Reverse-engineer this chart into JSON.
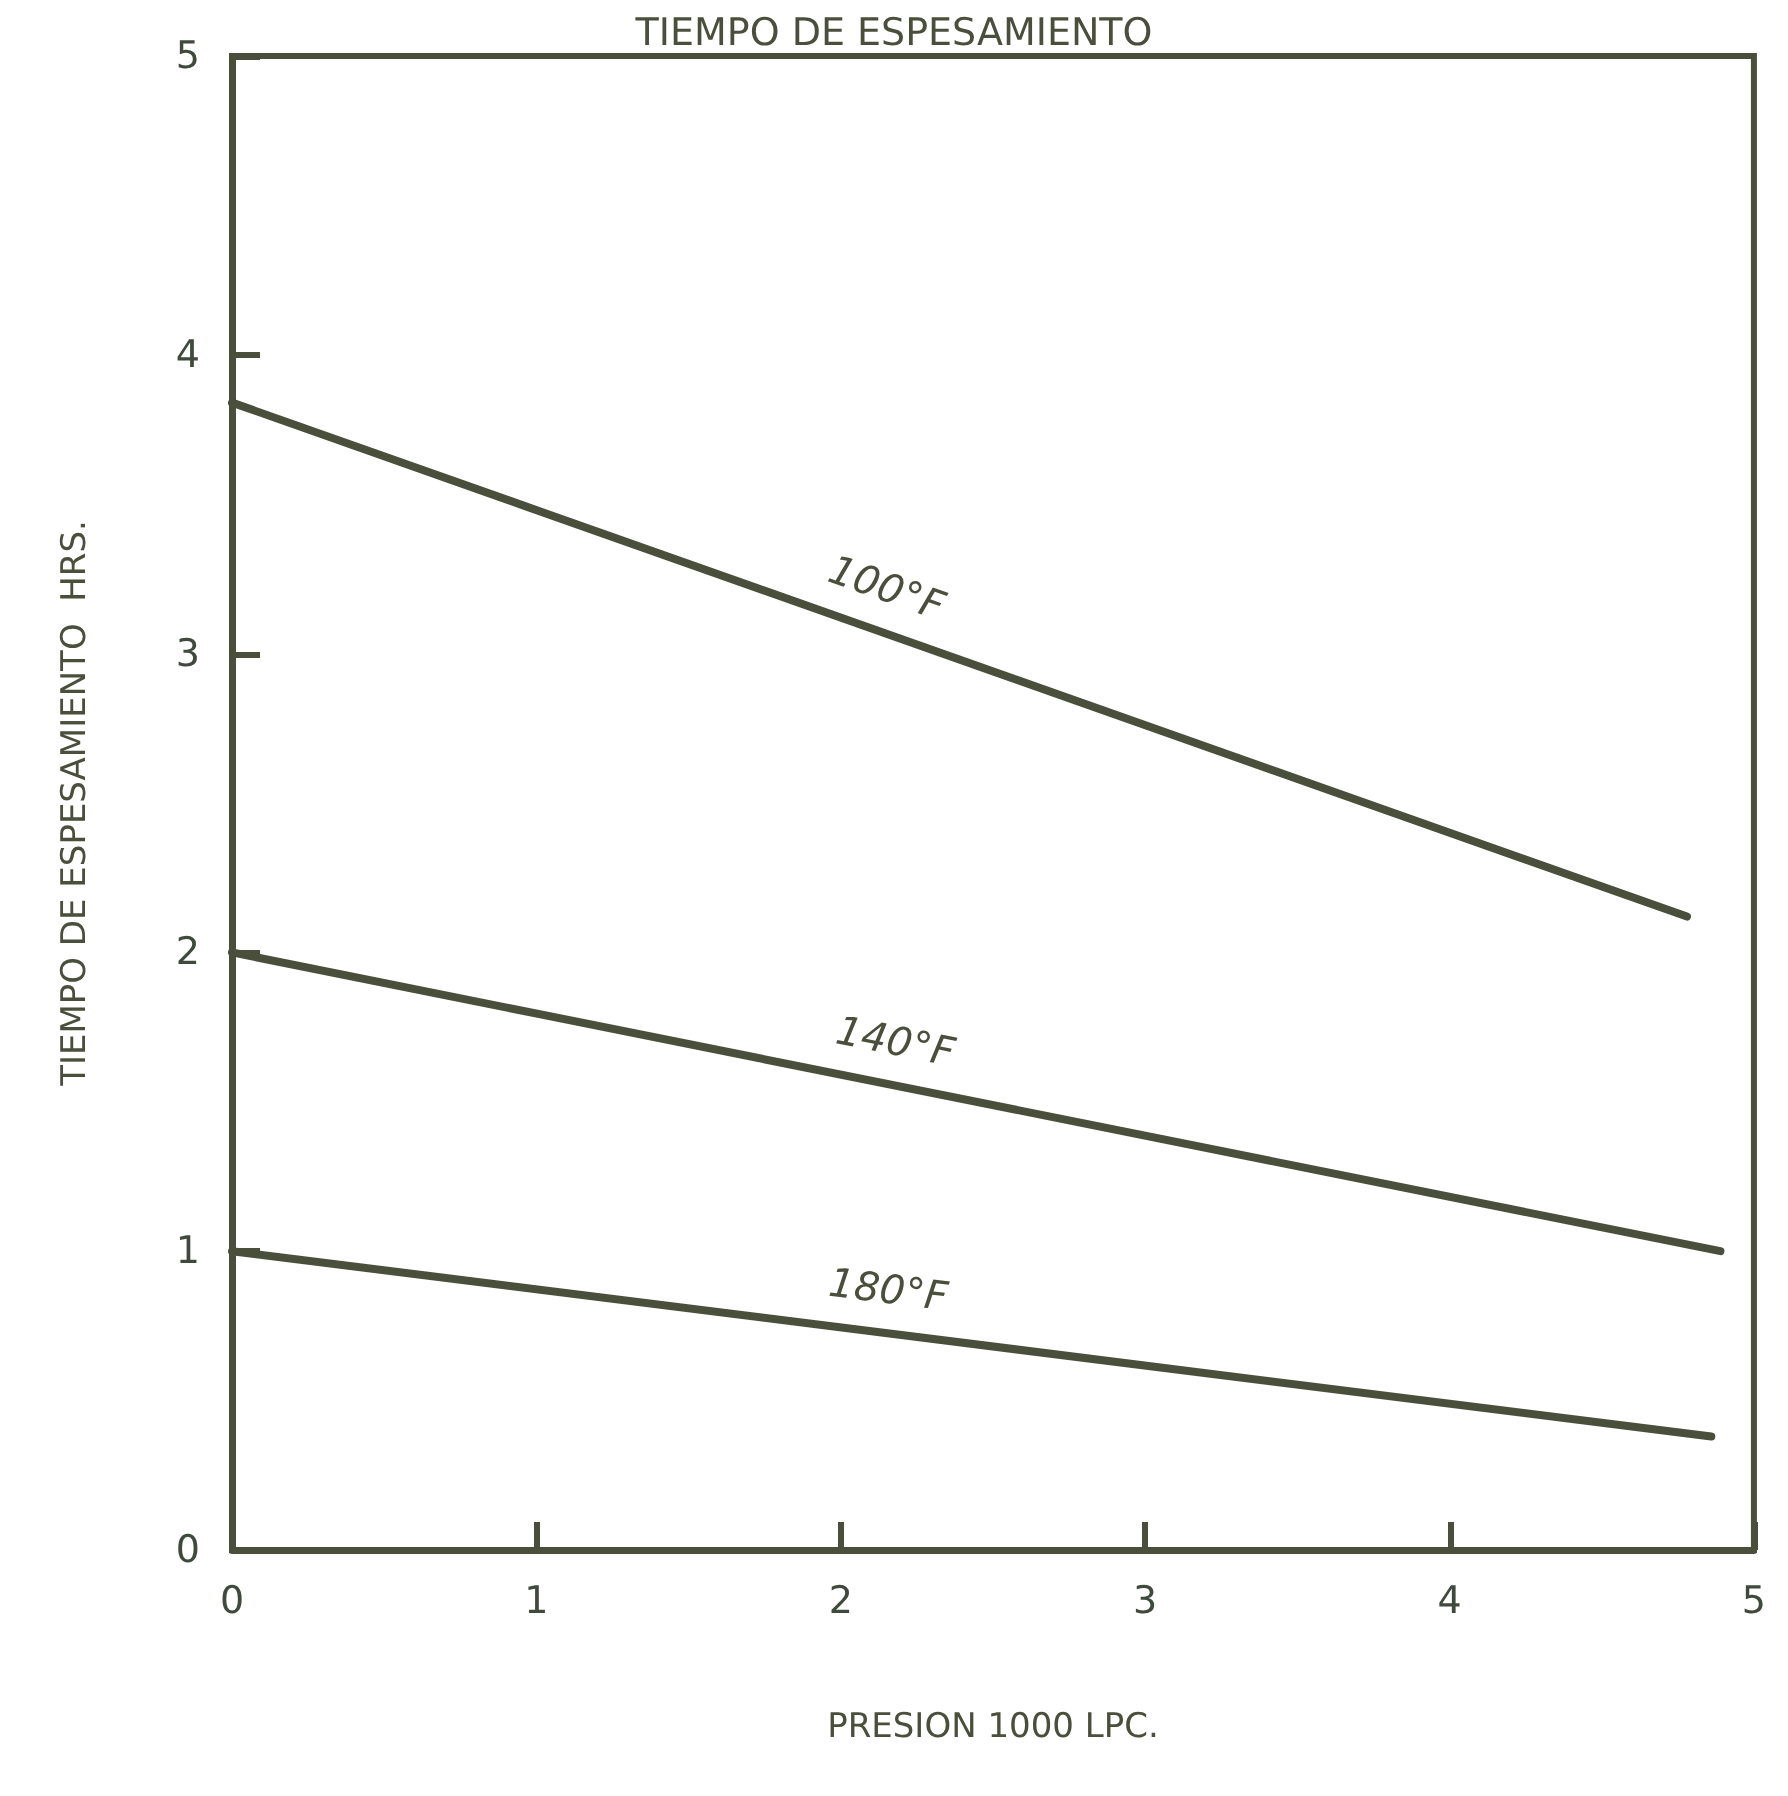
{
  "chart_data": {
    "type": "line",
    "title": "TIEMPO DE ESPESAMIENTO",
    "xlabel": "PRESION 1000 LPC.",
    "ylabel": "TIEMPO DE ESPESAMIENTO  HRS.",
    "xlim": [
      0,
      5
    ],
    "ylim": [
      0,
      5
    ],
    "xticks": [
      0,
      1,
      2,
      3,
      4,
      5
    ],
    "yticks": [
      0,
      1,
      2,
      3,
      4,
      5
    ],
    "grid": false,
    "legend": false,
    "marker": "none",
    "line_style": "solid",
    "series": [
      {
        "name": "100°F",
        "color": "#4a4f3c",
        "x": [
          0,
          4.78
        ],
        "values": [
          3.84,
          2.12
        ]
      },
      {
        "name": "140°F",
        "color": "#4a4f3c",
        "x": [
          0,
          4.89
        ],
        "values": [
          2.0,
          1.0
        ]
      },
      {
        "name": "180°F",
        "color": "#4a4f3c",
        "x": [
          0,
          4.86
        ],
        "values": [
          1.0,
          0.38
        ]
      }
    ]
  }
}
